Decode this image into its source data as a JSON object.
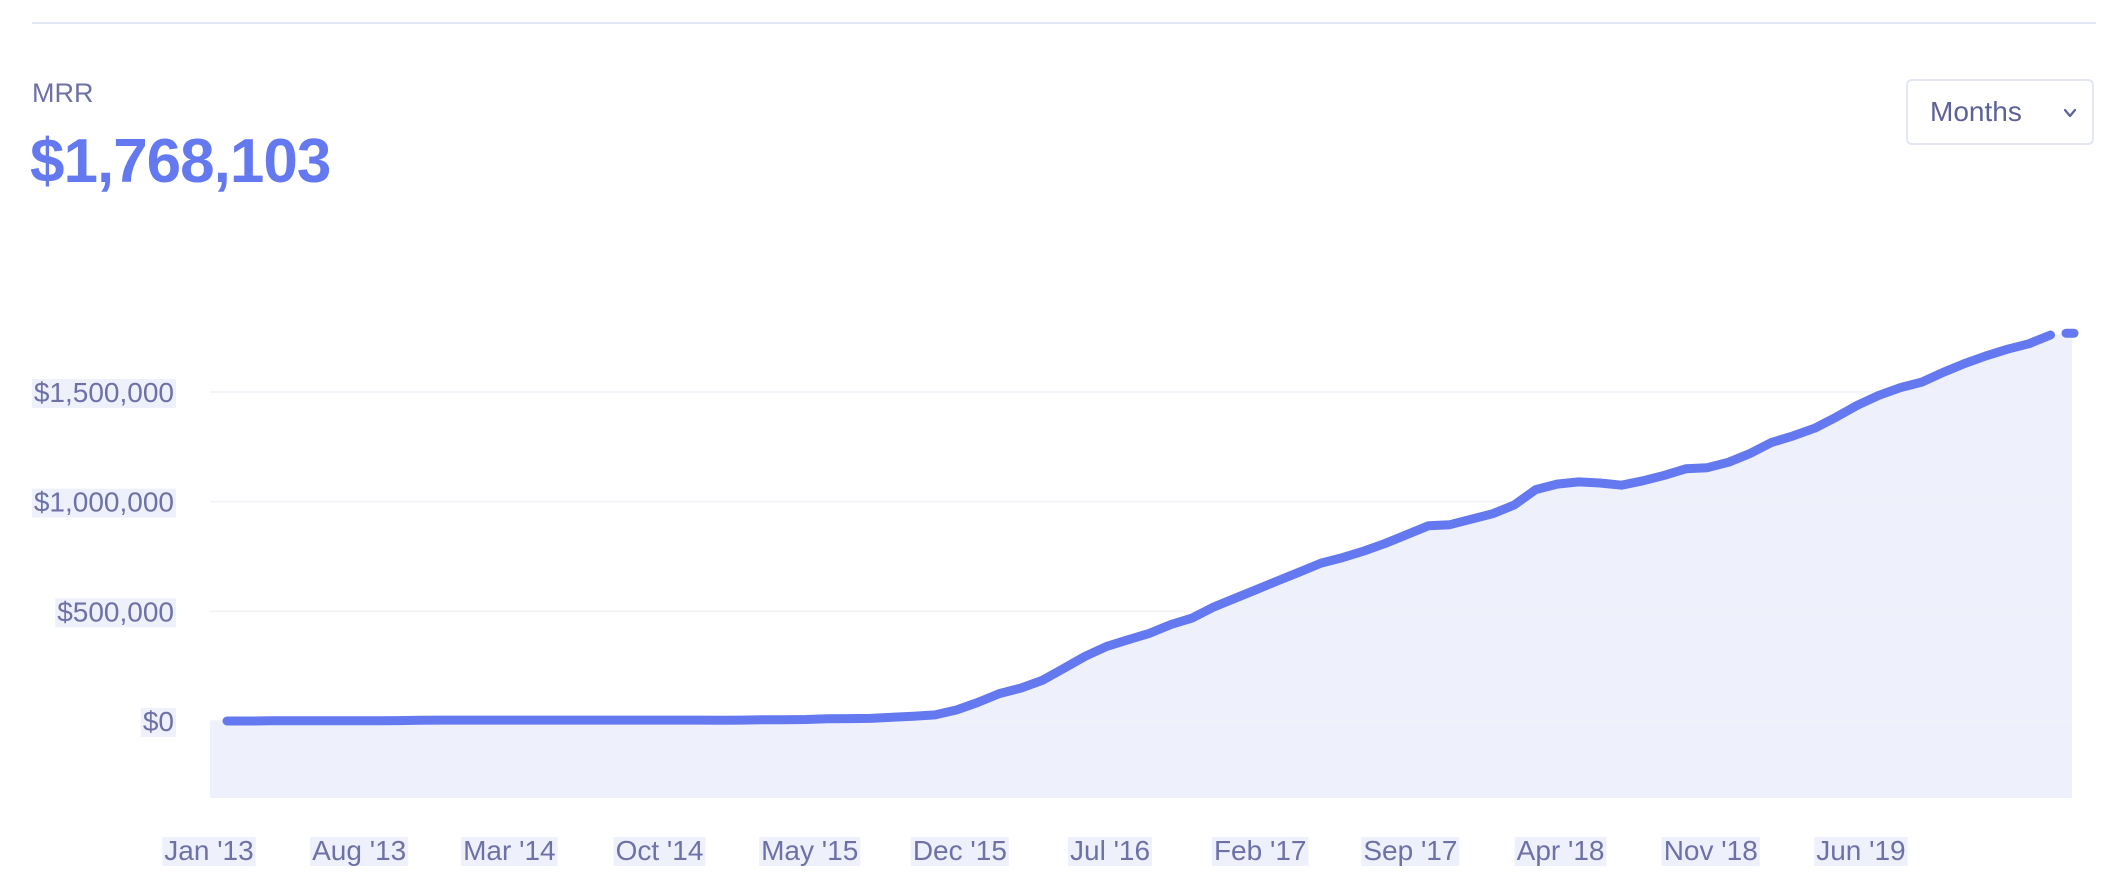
{
  "metric": {
    "label": "MRR",
    "value": "$1,768,103"
  },
  "period_select": {
    "label": "Months"
  },
  "colors": {
    "line": "#6478f0",
    "area": "#eef0fc",
    "tick_bg": "#eef0fc",
    "grid": "#f1f2f8"
  },
  "chart_data": {
    "type": "area",
    "title": "",
    "xlabel": "",
    "ylabel": "",
    "ylim": [
      -180000,
      1800000
    ],
    "y_ticks": [
      {
        "value": 0,
        "label": "$0"
      },
      {
        "value": 500000,
        "label": "$500,000"
      },
      {
        "value": 1000000,
        "label": "$1,000,000"
      },
      {
        "value": 1500000,
        "label": "$1,500,000"
      }
    ],
    "x_ticks": [
      "Jan '13",
      "Aug '13",
      "Mar '14",
      "Oct '14",
      "May '15",
      "Dec '15",
      "Jul '16",
      "Feb '17",
      "Sep '17",
      "Apr '18",
      "Nov '18",
      "Jun '19"
    ],
    "x_tick_months": [
      0,
      7,
      14,
      21,
      28,
      35,
      42,
      49,
      56,
      63,
      70,
      77
    ],
    "grid": true,
    "series": [
      {
        "months": [
          0,
          1,
          2,
          3,
          4,
          5,
          6,
          7,
          8,
          9,
          10,
          11,
          12,
          13,
          14,
          15,
          16,
          17,
          18,
          19,
          20,
          21,
          22,
          23,
          24,
          25,
          26,
          27,
          28,
          29,
          30,
          31,
          32,
          33,
          34,
          35,
          36,
          37,
          38,
          39,
          40,
          41,
          42,
          43,
          44,
          45,
          46,
          47,
          48,
          49,
          50,
          51,
          52,
          53,
          54,
          55,
          56,
          57,
          58,
          59,
          60,
          61,
          62,
          63,
          64,
          65,
          66,
          67,
          68,
          69,
          70,
          71,
          72,
          73,
          74,
          75,
          76,
          77,
          78,
          79,
          80,
          81,
          82,
          83,
          84,
          85,
          86
        ],
        "values": [
          0,
          0,
          1000,
          1000,
          1000,
          1000,
          1000,
          1000,
          2000,
          3000,
          4000,
          4000,
          4000,
          4000,
          4000,
          4000,
          4000,
          4000,
          4000,
          4000,
          4000,
          4000,
          4000,
          3000,
          4000,
          6000,
          6000,
          7000,
          10000,
          11000,
          12000,
          17000,
          22000,
          28000,
          50000,
          85000,
          125000,
          150000,
          185000,
          240000,
          295000,
          340000,
          370000,
          400000,
          440000,
          470000,
          520000,
          560000,
          600000,
          640000,
          680000,
          720000,
          745000,
          775000,
          810000,
          850000,
          890000,
          895000,
          920000,
          945000,
          985000,
          1055000,
          1080000,
          1090000,
          1085000,
          1075000,
          1095000,
          1120000,
          1150000,
          1155000,
          1180000,
          1220000,
          1270000,
          1300000,
          1335000,
          1385000,
          1440000,
          1485000,
          1520000,
          1545000,
          1590000,
          1630000,
          1665000,
          1695000,
          1720000,
          1760000,
          1768103
        ]
      }
    ]
  }
}
